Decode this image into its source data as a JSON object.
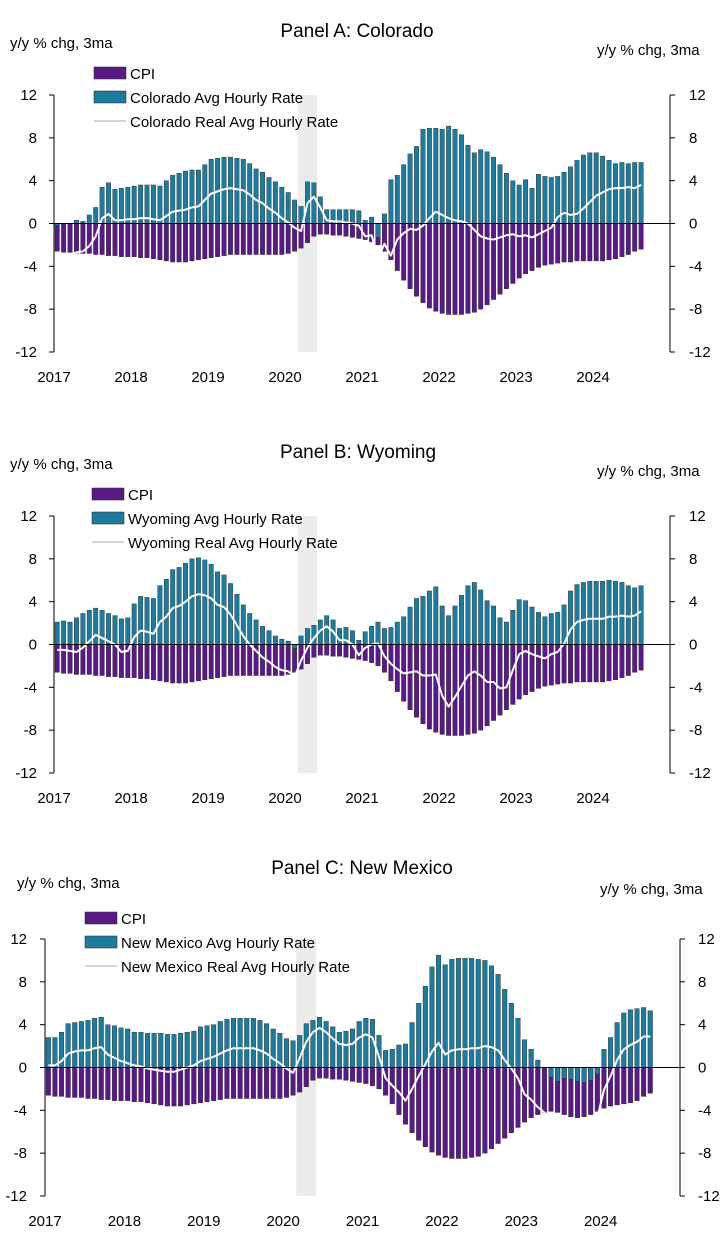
{
  "chart_data": [
    {
      "type": "bar",
      "title": "Panel A: Colorado",
      "ylabel_left": "y/y % chg, 3ma",
      "ylabel_right": "y/y % chg, 3ma",
      "ylim": [
        -12,
        12
      ],
      "yticks": [
        "12",
        "8",
        "4",
        "0",
        "-4",
        "-8",
        "-12"
      ],
      "years": [
        "2017",
        "2018",
        "2019",
        "2020",
        "2021",
        "2022",
        "2023",
        "2024"
      ],
      "x_start": "2017-01",
      "shaded_period": [
        "2020-03",
        "2020-05"
      ],
      "series": [
        {
          "name": "CPI",
          "type": "bar",
          "color": "#5a1a86",
          "values": [
            -2.6,
            -2.7,
            -2.7,
            -2.8,
            -2.8,
            -2.8,
            -2.9,
            -2.9,
            -3.0,
            -3.0,
            -3.1,
            -3.1,
            -3.1,
            -3.2,
            -3.2,
            -3.3,
            -3.4,
            -3.5,
            -3.6,
            -3.6,
            -3.6,
            -3.5,
            -3.4,
            -3.3,
            -3.2,
            -3.1,
            -3.0,
            -2.9,
            -2.9,
            -2.9,
            -2.9,
            -2.9,
            -2.9,
            -2.9,
            -2.9,
            -2.9,
            -2.8,
            -2.6,
            -2.3,
            -1.8,
            -1.2,
            -1.0,
            -1.0,
            -1.1,
            -1.1,
            -1.2,
            -1.3,
            -1.4,
            -1.5,
            -1.7,
            -2.0,
            -2.6,
            -3.4,
            -4.4,
            -5.3,
            -6.1,
            -6.8,
            -7.4,
            -7.9,
            -8.2,
            -8.4,
            -8.5,
            -8.5,
            -8.5,
            -8.4,
            -8.3,
            -8.0,
            -7.6,
            -7.1,
            -6.6,
            -6.1,
            -5.6,
            -5.1,
            -4.7,
            -4.4,
            -4.1,
            -3.9,
            -3.8,
            -3.7,
            -3.6,
            -3.6,
            -3.5,
            -3.5,
            -3.5,
            -3.5,
            -3.5,
            -3.4,
            -3.3,
            -3.1,
            -2.9,
            -2.6,
            -2.4
          ]
        },
        {
          "name": "Colorado Avg Hourly Rate",
          "type": "bar",
          "color": "#1f7b9c",
          "values": [
            -0.2,
            -0.1,
            0.0,
            0.3,
            0.2,
            0.8,
            1.5,
            3.4,
            3.8,
            3.2,
            3.3,
            3.4,
            3.5,
            3.6,
            3.6,
            3.6,
            3.5,
            4.0,
            4.5,
            4.7,
            4.9,
            5.0,
            5.0,
            5.5,
            6.0,
            6.1,
            6.2,
            6.2,
            6.1,
            6.0,
            5.6,
            5.1,
            4.8,
            4.3,
            3.9,
            3.4,
            2.9,
            2.2,
            1.6,
            3.9,
            3.8,
            2.5,
            1.3,
            1.3,
            1.3,
            1.3,
            1.3,
            1.2,
            0.3,
            0.6,
            -1.3,
            0.9,
            4.1,
            4.5,
            5.5,
            6.5,
            7.2,
            8.8,
            8.9,
            8.9,
            8.8,
            9.1,
            8.8,
            8.3,
            7.3,
            6.6,
            6.9,
            6.7,
            6.2,
            5.5,
            4.7,
            4.0,
            3.6,
            4.1,
            3.3,
            4.6,
            4.4,
            4.3,
            4.4,
            4.8,
            5.3,
            5.9,
            6.4,
            6.6,
            6.6,
            6.3,
            5.9,
            5.6,
            5.7,
            5.6,
            5.7,
            5.7
          ]
        },
        {
          "name": "Colorado Real Avg Hourly Rate",
          "type": "line",
          "color": "#ffffff",
          "values": [
            -2.8,
            -2.8,
            -2.9,
            -2.7,
            -2.6,
            -2.1,
            -1.2,
            0.5,
            0.9,
            0.3,
            0.3,
            0.4,
            0.4,
            0.5,
            0.5,
            0.4,
            0.3,
            0.7,
            1.1,
            1.2,
            1.3,
            1.5,
            1.6,
            2.2,
            2.8,
            3.0,
            3.2,
            3.3,
            3.2,
            3.1,
            2.7,
            2.2,
            1.9,
            1.4,
            1.0,
            0.5,
            0.1,
            -0.4,
            -0.7,
            1.9,
            2.5,
            1.5,
            0.3,
            0.2,
            0.2,
            0.1,
            0.0,
            -0.2,
            -1.2,
            -1.1,
            -3.2,
            -1.9,
            -3.0,
            -1.5,
            -0.9,
            -0.5,
            -0.6,
            -0.2,
            0.5,
            1.1,
            0.8,
            0.5,
            0.3,
            0.2,
            0.0,
            -0.6,
            -1.2,
            -1.4,
            -1.5,
            -1.3,
            -1.1,
            -1.0,
            -1.2,
            -1.1,
            -1.3,
            -1.0,
            -0.7,
            -0.4,
            0.6,
            1.0,
            0.8,
            0.9,
            1.4,
            2.0,
            2.6,
            2.9,
            3.2,
            3.3,
            3.3,
            3.4,
            3.3,
            3.6
          ]
        }
      ]
    },
    {
      "type": "bar",
      "title": "Panel B: Wyoming",
      "ylabel_left": "y/y % chg, 3ma",
      "ylabel_right": "y/y % chg, 3ma",
      "ylim": [
        -12,
        12
      ],
      "yticks": [
        "12",
        "8",
        "4",
        "0",
        "-4",
        "-8",
        "-12"
      ],
      "years": [
        "2017",
        "2018",
        "2019",
        "2020",
        "2021",
        "2022",
        "2023",
        "2024"
      ],
      "x_start": "2017-01",
      "shaded_period": [
        "2020-03",
        "2020-05"
      ],
      "series": [
        {
          "name": "CPI",
          "type": "bar",
          "color": "#5a1a86",
          "values": [
            -2.6,
            -2.7,
            -2.7,
            -2.8,
            -2.8,
            -2.8,
            -2.9,
            -2.9,
            -3.0,
            -3.0,
            -3.1,
            -3.1,
            -3.1,
            -3.2,
            -3.2,
            -3.3,
            -3.4,
            -3.5,
            -3.6,
            -3.6,
            -3.6,
            -3.5,
            -3.4,
            -3.3,
            -3.2,
            -3.1,
            -3.0,
            -2.9,
            -2.9,
            -2.9,
            -2.9,
            -2.9,
            -2.9,
            -2.9,
            -2.9,
            -2.9,
            -2.8,
            -2.6,
            -2.3,
            -1.8,
            -1.2,
            -1.0,
            -1.0,
            -1.1,
            -1.1,
            -1.2,
            -1.3,
            -1.4,
            -1.5,
            -1.7,
            -2.0,
            -2.6,
            -3.4,
            -4.4,
            -5.3,
            -6.1,
            -6.8,
            -7.4,
            -7.9,
            -8.2,
            -8.4,
            -8.5,
            -8.5,
            -8.5,
            -8.4,
            -8.3,
            -8.0,
            -7.6,
            -7.1,
            -6.6,
            -6.1,
            -5.6,
            -5.1,
            -4.7,
            -4.4,
            -4.1,
            -3.9,
            -3.8,
            -3.7,
            -3.6,
            -3.6,
            -3.5,
            -3.5,
            -3.5,
            -3.5,
            -3.5,
            -3.4,
            -3.3,
            -3.1,
            -2.9,
            -2.6,
            -2.4
          ]
        },
        {
          "name": "Wyoming Avg Hourly Rate",
          "type": "bar",
          "color": "#1f7b9c",
          "values": [
            2.1,
            2.2,
            2.1,
            2.5,
            2.9,
            3.2,
            3.4,
            3.2,
            2.9,
            2.7,
            2.4,
            2.5,
            3.8,
            4.5,
            4.4,
            4.3,
            5.5,
            6.1,
            7.0,
            7.2,
            7.6,
            8.0,
            8.1,
            7.9,
            7.5,
            6.8,
            6.5,
            5.7,
            4.7,
            3.7,
            2.9,
            2.3,
            1.7,
            1.3,
            0.8,
            0.5,
            0.3,
            -0.4,
            0.8,
            1.5,
            1.8,
            2.3,
            2.7,
            2.3,
            1.5,
            1.6,
            1.3,
            0.4,
            1.2,
            1.7,
            2.1,
            1.5,
            1.6,
            2.1,
            2.6,
            3.5,
            4.3,
            4.5,
            5.0,
            5.4,
            3.6,
            2.7,
            3.6,
            4.6,
            5.5,
            5.8,
            5.1,
            4.1,
            3.6,
            2.5,
            2.1,
            3.2,
            4.2,
            4.1,
            3.5,
            3.0,
            2.6,
            2.9,
            3.0,
            3.7,
            5.0,
            5.6,
            5.8,
            5.9,
            5.9,
            5.9,
            6.0,
            5.9,
            5.8,
            5.5,
            5.3,
            5.5
          ]
        },
        {
          "name": "Wyoming Real Avg Hourly Rate",
          "type": "line",
          "color": "#ffffff",
          "values": [
            -0.5,
            -0.5,
            -0.6,
            -0.7,
            -0.3,
            0.3,
            0.9,
            0.6,
            0.3,
            0.0,
            -0.7,
            -0.6,
            0.7,
            1.3,
            1.2,
            1.0,
            2.1,
            2.6,
            3.4,
            3.6,
            4.0,
            4.5,
            4.7,
            4.6,
            4.3,
            3.7,
            3.5,
            2.8,
            1.8,
            0.8,
            0.0,
            -0.6,
            -1.2,
            -1.6,
            -2.1,
            -2.4,
            -2.5,
            -3.0,
            -1.5,
            -0.3,
            0.6,
            1.3,
            1.7,
            1.2,
            0.4,
            0.4,
            0.0,
            -1.0,
            -0.3,
            0.0,
            0.1,
            -1.1,
            -1.8,
            -2.3,
            -2.7,
            -2.6,
            -2.5,
            -2.9,
            -2.9,
            -2.8,
            -4.8,
            -5.8,
            -4.9,
            -3.9,
            -2.9,
            -2.5,
            -2.9,
            -3.5,
            -3.5,
            -4.1,
            -4.0,
            -2.4,
            -0.9,
            -0.6,
            -0.9,
            -1.1,
            -1.3,
            -0.9,
            -0.7,
            0.1,
            1.4,
            2.1,
            2.3,
            2.4,
            2.4,
            2.4,
            2.6,
            2.6,
            2.7,
            2.6,
            2.7,
            3.1
          ]
        }
      ]
    },
    {
      "type": "bar",
      "title": "Panel C: New Mexico",
      "ylabel_left": "y/y % chg, 3ma",
      "ylabel_right": "y/y % chg, 3ma",
      "ylim": [
        -12,
        12
      ],
      "yticks": [
        "12",
        "8",
        "4",
        "0",
        "-4",
        "-8",
        "-12"
      ],
      "years": [
        "2017",
        "2018",
        "2019",
        "2020",
        "2021",
        "2022",
        "2023",
        "2024"
      ],
      "x_start": "2017-01",
      "shaded_period": [
        "2020-03",
        "2020-05"
      ],
      "series": [
        {
          "name": "CPI",
          "type": "bar",
          "color": "#5a1a86",
          "values": [
            -2.6,
            -2.7,
            -2.7,
            -2.8,
            -2.8,
            -2.8,
            -2.9,
            -2.9,
            -3.0,
            -3.0,
            -3.1,
            -3.1,
            -3.1,
            -3.2,
            -3.2,
            -3.3,
            -3.4,
            -3.5,
            -3.6,
            -3.6,
            -3.6,
            -3.5,
            -3.4,
            -3.3,
            -3.2,
            -3.1,
            -3.0,
            -2.9,
            -2.9,
            -2.9,
            -2.9,
            -2.9,
            -2.9,
            -2.9,
            -2.9,
            -2.9,
            -2.8,
            -2.6,
            -2.3,
            -1.8,
            -1.2,
            -1.0,
            -1.0,
            -1.1,
            -1.1,
            -1.2,
            -1.3,
            -1.4,
            -1.5,
            -1.7,
            -2.0,
            -2.6,
            -3.4,
            -4.4,
            -5.3,
            -6.1,
            -6.8,
            -7.4,
            -7.9,
            -8.2,
            -8.4,
            -8.5,
            -8.5,
            -8.5,
            -8.4,
            -8.3,
            -8.0,
            -7.6,
            -7.1,
            -6.6,
            -6.1,
            -5.6,
            -5.1,
            -4.7,
            -4.4,
            -4.2,
            -4.1,
            -4.2,
            -4.4,
            -4.6,
            -4.7,
            -4.6,
            -4.4,
            -4.1,
            -3.8,
            -3.6,
            -3.5,
            -3.4,
            -3.3,
            -3.1,
            -2.7,
            -2.4
          ]
        },
        {
          "name": "New Mexico Avg Hourly Rate",
          "type": "bar",
          "color": "#1f7b9c",
          "values": [
            2.8,
            2.8,
            3.3,
            4.1,
            4.2,
            4.3,
            4.4,
            4.6,
            4.7,
            4.0,
            3.9,
            3.7,
            3.6,
            3.3,
            3.3,
            3.2,
            3.2,
            3.2,
            3.1,
            3.1,
            3.2,
            3.3,
            3.4,
            3.8,
            3.9,
            4.0,
            4.3,
            4.5,
            4.6,
            4.6,
            4.6,
            4.6,
            4.4,
            4.1,
            3.6,
            3.2,
            2.7,
            2.5,
            3.0,
            4.1,
            4.4,
            4.7,
            4.3,
            3.8,
            3.3,
            3.4,
            3.6,
            4.3,
            4.6,
            4.5,
            3.0,
            1.6,
            1.7,
            2.1,
            2.2,
            4.2,
            6.0,
            7.6,
            9.4,
            10.5,
            9.6,
            10.1,
            10.2,
            10.2,
            10.2,
            10.1,
            10.0,
            9.5,
            8.7,
            7.3,
            6.0,
            4.6,
            2.6,
            1.7,
            0.7,
            0.0,
            -0.9,
            -1.3,
            -1.0,
            -1.1,
            -1.3,
            -1.4,
            -1.2,
            -0.6,
            1.7,
            2.8,
            4.2,
            5.1,
            5.4,
            5.5,
            5.6,
            5.3
          ]
        },
        {
          "name": "New Mexico Real Avg Hourly Rate",
          "type": "line",
          "color": "#ffffff",
          "values": [
            0.2,
            0.2,
            0.6,
            1.3,
            1.5,
            1.6,
            1.6,
            1.8,
            1.9,
            1.2,
            0.9,
            0.6,
            0.4,
            0.2,
            0.1,
            -0.1,
            -0.2,
            -0.3,
            -0.4,
            -0.4,
            -0.2,
            0.0,
            0.2,
            0.6,
            0.8,
            1.0,
            1.3,
            1.6,
            1.8,
            1.8,
            1.8,
            1.8,
            1.6,
            1.3,
            0.8,
            0.4,
            -0.1,
            -0.5,
            0.9,
            2.4,
            3.3,
            3.7,
            3.3,
            2.7,
            2.2,
            2.1,
            2.2,
            2.8,
            3.1,
            2.8,
            1.0,
            -1.0,
            -1.7,
            -2.3,
            -3.1,
            -2.0,
            -0.8,
            0.3,
            1.5,
            2.3,
            1.2,
            1.6,
            1.7,
            1.7,
            1.8,
            1.8,
            2.0,
            1.9,
            1.6,
            0.7,
            -0.1,
            -1.0,
            -2.5,
            -3.0,
            -3.7,
            -4.2,
            -5.0,
            -5.5,
            -5.4,
            -5.7,
            -6.0,
            -6.0,
            -5.6,
            -4.7,
            -2.1,
            -0.8,
            0.7,
            1.7,
            2.1,
            2.4,
            2.9,
            2.9
          ]
        }
      ]
    }
  ]
}
